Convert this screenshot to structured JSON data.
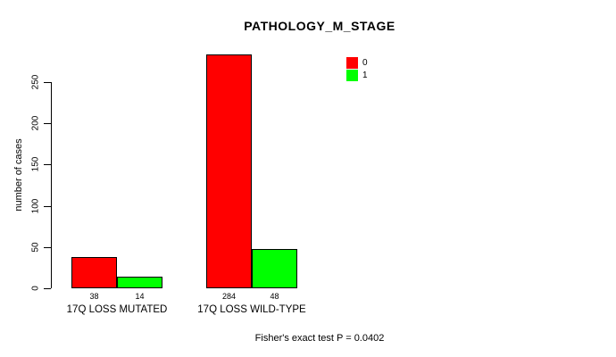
{
  "chart_data": {
    "type": "bar",
    "title": "PATHOLOGY_M_STAGE",
    "ylabel": "number of cases",
    "xlabel": "",
    "categories": [
      "17Q LOSS MUTATED",
      "17Q LOSS WILD-TYPE"
    ],
    "series": [
      {
        "name": "0",
        "color": "#ff0000",
        "values": [
          38,
          284
        ]
      },
      {
        "name": "1",
        "color": "#00ff00",
        "values": [
          14,
          48
        ]
      }
    ],
    "bar_value_labels": true,
    "yticks": [
      0,
      50,
      100,
      150,
      200,
      250
    ],
    "ylim": [
      0,
      250
    ],
    "grid": false,
    "legend_position": "top-right",
    "annotation": "Fisher's exact test P = 0.0402"
  },
  "colors": {
    "background": "#ffffff",
    "axis": "#000000",
    "series_0": "#ff0000",
    "series_1": "#00ff00"
  }
}
